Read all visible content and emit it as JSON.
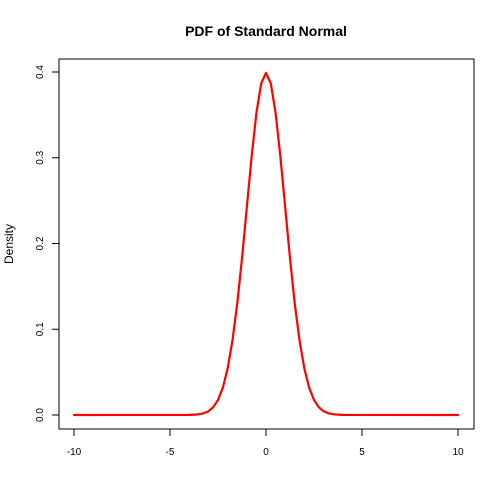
{
  "chart_data": {
    "type": "line",
    "title": "PDF of Standard Normal",
    "xlabel": "",
    "ylabel": "Density",
    "xlim": [
      -10,
      10
    ],
    "ylim": [
      0,
      0.4
    ],
    "x_ticks": [
      -10,
      -5,
      0,
      5,
      10
    ],
    "x_tick_labels": [
      "-10",
      "-5",
      "0",
      "5",
      "10"
    ],
    "y_ticks": [
      0.0,
      0.1,
      0.2,
      0.3,
      0.4
    ],
    "y_tick_labels": [
      "0.0",
      "0.1",
      "0.2",
      "0.3",
      "0.4"
    ],
    "grid": false,
    "series": [
      {
        "color": "#ff0000",
        "x": [
          -10,
          -4,
          -3.75,
          -3.5,
          -3.25,
          -3,
          -2.75,
          -2.5,
          -2.25,
          -2,
          -1.75,
          -1.5,
          -1.25,
          -1,
          -0.75,
          -0.5,
          -0.25,
          0,
          0.25,
          0.5,
          0.75,
          1,
          1.25,
          1.5,
          1.75,
          2,
          2.25,
          2.5,
          2.75,
          3,
          3.25,
          3.5,
          3.75,
          4,
          10
        ],
        "y": [
          0.0,
          0.0001,
          0.0004,
          0.0009,
          0.002,
          0.0044,
          0.0091,
          0.0175,
          0.0317,
          0.054,
          0.0863,
          0.1295,
          0.1826,
          0.242,
          0.3011,
          0.3521,
          0.3867,
          0.3989,
          0.3867,
          0.3521,
          0.3011,
          0.242,
          0.1826,
          0.1295,
          0.0863,
          0.054,
          0.0317,
          0.0175,
          0.0091,
          0.0044,
          0.002,
          0.0009,
          0.0004,
          0.0001,
          0.0
        ]
      }
    ]
  }
}
